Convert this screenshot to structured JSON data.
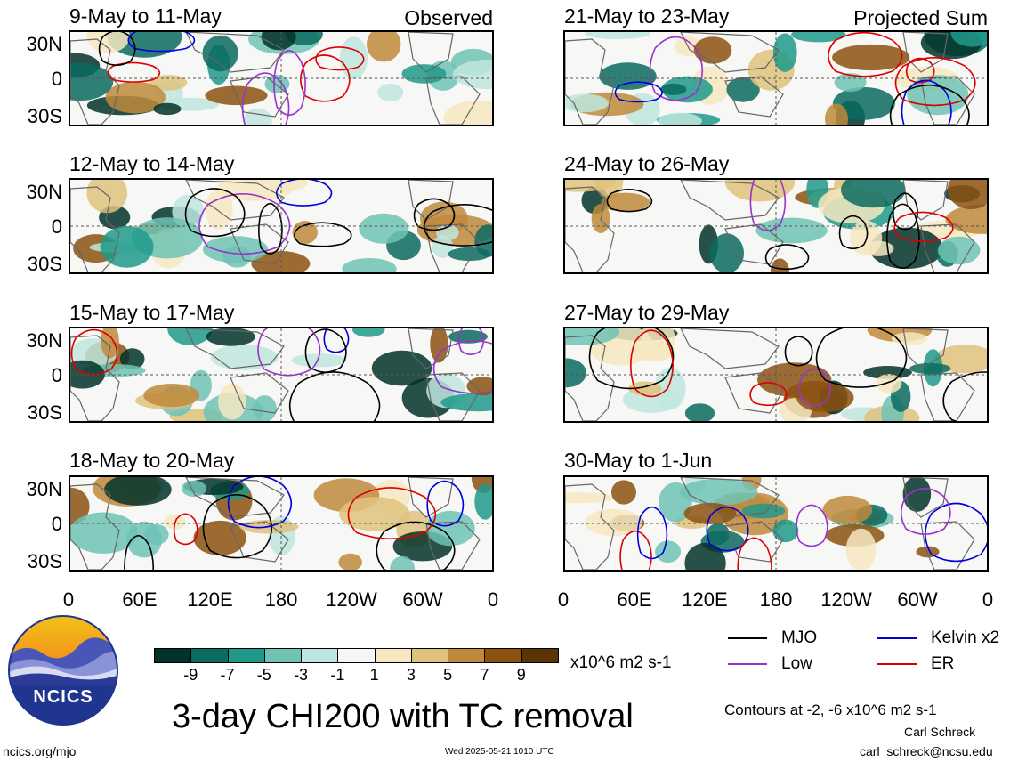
{
  "panels": [
    {
      "title": "9-May to 11-May",
      "tag": "Observed"
    },
    {
      "title": "12-May to 14-May",
      "tag": ""
    },
    {
      "title": "15-May to 17-May",
      "tag": ""
    },
    {
      "title": "18-May to 20-May",
      "tag": ""
    },
    {
      "title": "21-May to 23-May",
      "tag": "Projected Sum"
    },
    {
      "title": "24-May to 26-May",
      "tag": ""
    },
    {
      "title": "27-May to 29-May",
      "tag": ""
    },
    {
      "title": "30-May to 1-Jun",
      "tag": ""
    }
  ],
  "lat_labels": [
    "30N",
    "0",
    "30S"
  ],
  "lon_labels": [
    "0",
    "60E",
    "120E",
    "180",
    "120W",
    "60W",
    "0"
  ],
  "colorbar": {
    "colors": [
      "#02332a",
      "#0a6b5f",
      "#1f9a8a",
      "#6ec3b5",
      "#bfe6de",
      "#f6f6f6",
      "#f6e7c1",
      "#dfc27d",
      "#bf8a3b",
      "#8c5210",
      "#5a3405"
    ],
    "labels": [
      "-9",
      "-7",
      "-5",
      "-3",
      "-1",
      "1",
      "3",
      "5",
      "7",
      "9"
    ],
    "units": "x10^6 m2 s-1"
  },
  "legend": {
    "items": [
      {
        "label": "MJO",
        "color": "#000000"
      },
      {
        "label": "Kelvin x2",
        "color": "#0000dd"
      },
      {
        "label": "Low",
        "color": "#9933cc"
      },
      {
        "label": "ER",
        "color": "#dd0000"
      }
    ],
    "contour_note": "Contours at -2, -6 x10^6 m2 s-1"
  },
  "main_title": "3-day CHI200 with TC removal",
  "logo_text": "NCICS",
  "footer": {
    "left_url": "ncics.org/mjo",
    "timestamp": "Wed 2025-05-21 1010 UTC",
    "author": "Carl Schreck",
    "email": "carl_schreck@ncsu.edu"
  }
}
